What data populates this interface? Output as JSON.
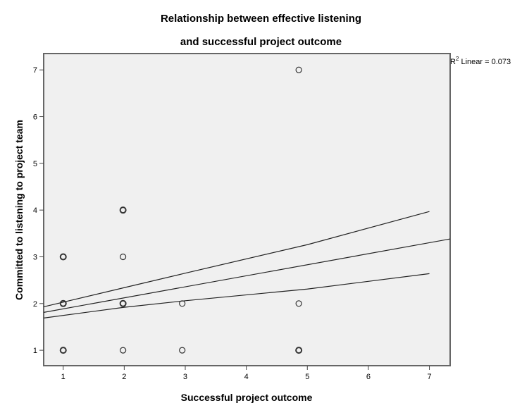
{
  "chart_data": {
    "type": "scatter",
    "title_line1": "Relationship between effective listening",
    "title_line2": "and successful project outcome",
    "xlabel": "Successful project outcome",
    "ylabel": "Committed to listening to project team",
    "xlim": [
      0.68,
      7.34
    ],
    "ylim": [
      0.67,
      7.35
    ],
    "xticks": [
      "1",
      "2",
      "3",
      "4",
      "5",
      "6",
      "7"
    ],
    "yticks": [
      "1",
      "2",
      "3",
      "4",
      "5",
      "6",
      "7"
    ],
    "grid": false,
    "points": [
      {
        "x": 1,
        "y": 1,
        "overlap": true
      },
      {
        "x": 1,
        "y": 2,
        "overlap": true
      },
      {
        "x": 1,
        "y": 3,
        "overlap": true
      },
      {
        "x": 1.98,
        "y": 1
      },
      {
        "x": 1.98,
        "y": 2,
        "overlap": true
      },
      {
        "x": 1.98,
        "y": 3
      },
      {
        "x": 1.98,
        "y": 4,
        "overlap": true
      },
      {
        "x": 2.95,
        "y": 1
      },
      {
        "x": 2.95,
        "y": 2
      },
      {
        "x": 4.86,
        "y": 1,
        "overlap": true
      },
      {
        "x": 4.86,
        "y": 2
      },
      {
        "x": 4.86,
        "y": 7
      }
    ],
    "fit_line": {
      "intercept": 1.65,
      "slope": 0.236,
      "x_range": [
        0.68,
        7.34
      ]
    },
    "ci_upper": [
      [
        0.68,
        1.93
      ],
      [
        2,
        2.34
      ],
      [
        3,
        2.65
      ],
      [
        5,
        3.26
      ],
      [
        7,
        3.97
      ]
    ],
    "ci_lower": [
      [
        0.68,
        1.69
      ],
      [
        2,
        1.92
      ],
      [
        3,
        2.06
      ],
      [
        5,
        2.31
      ],
      [
        7,
        2.64
      ]
    ],
    "r2_label_prefix": "R",
    "r2_label_sup": "2",
    "r2_label_suffix": " Linear = 0.073",
    "colors": {
      "plot_bg": "#f0f0f0",
      "marker": "#333333",
      "line": "#222222"
    }
  }
}
